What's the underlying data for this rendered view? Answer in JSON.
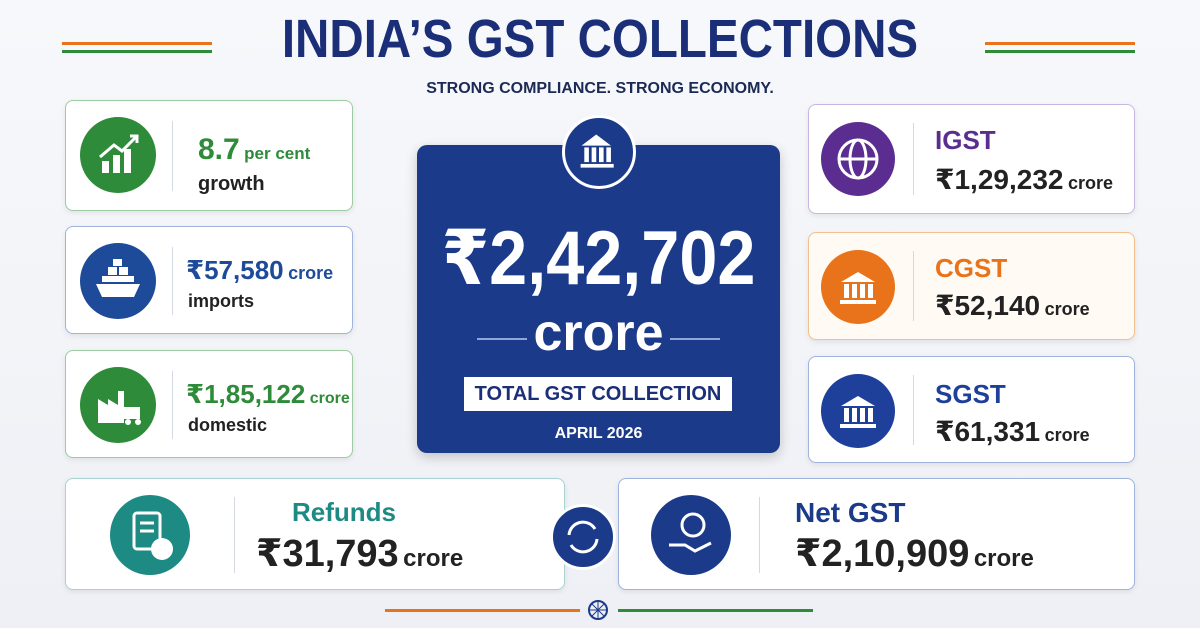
{
  "header": {
    "title": "INDIA’S GST COLLECTIONS",
    "subtitle": "STRONG COMPLIANCE. STRONG ECONOMY."
  },
  "left_cards": [
    {
      "value": "8.7",
      "unit": "per cent",
      "label": "growth"
    },
    {
      "value": "₹57,580",
      "unit": "crore",
      "label": "imports"
    },
    {
      "value": "₹1,85,122",
      "unit": "crore",
      "label": "domestic"
    }
  ],
  "center": {
    "amount": "₹2,42,702",
    "unit": "crore",
    "label": "TOTAL GST COLLECTION",
    "period": "APRIL 2026"
  },
  "right_cards": [
    {
      "label": "IGST",
      "value": "₹1,29,232",
      "unit": "crore"
    },
    {
      "label": "CGST",
      "value": "₹52,140",
      "unit": "crore"
    },
    {
      "label": "SGST",
      "value": "₹61,331",
      "unit": "crore"
    }
  ],
  "bottom_cards": [
    {
      "label": "Refunds",
      "value": "₹31,793",
      "unit": "crore"
    },
    {
      "label": "Net GST",
      "value": "₹2,10,909",
      "unit": "crore"
    }
  ]
}
